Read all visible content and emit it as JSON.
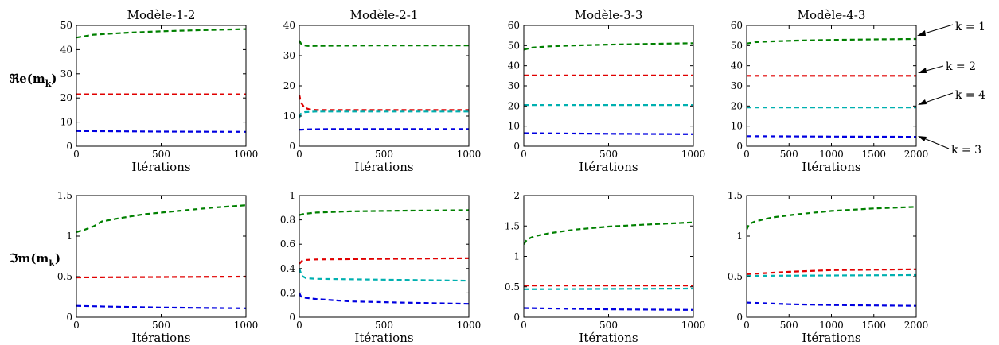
{
  "figure": {
    "ylabel_re": "ℜe(m",
    "ylabel_im": "ℑm(m",
    "ylabel_sub": "k",
    "ylabel_close": ")",
    "xlabel": "Itérations"
  },
  "legend": [
    {
      "label": "k = 1",
      "color": "#008000"
    },
    {
      "label": "k = 2",
      "color": "#e00000"
    },
    {
      "label": "k = 4",
      "color": "#00b0b0"
    },
    {
      "label": "k = 3",
      "color": "#0000e0"
    }
  ],
  "chart_data": [
    {
      "type": "line",
      "title": "Modèle-1-2",
      "xlabel": "Itérations",
      "ylabel": "ℜe(m_k)",
      "xlim": [
        0,
        1000
      ],
      "ylim": [
        0,
        50
      ],
      "xticks": [
        0,
        500,
        1000
      ],
      "yticks": [
        0,
        10,
        20,
        30,
        40,
        50
      ],
      "series": [
        {
          "name": "k = 1",
          "color": "#008000",
          "x": [
            0,
            100,
            300,
            500,
            700,
            1000
          ],
          "y": [
            45,
            46.2,
            47,
            47.6,
            48,
            48.5
          ]
        },
        {
          "name": "k = 2",
          "color": "#e00000",
          "x": [
            0,
            1000
          ],
          "y": [
            21.5,
            21.5
          ]
        },
        {
          "name": "k = 3",
          "color": "#0000e0",
          "x": [
            0,
            500,
            1000
          ],
          "y": [
            6.3,
            6.1,
            6
          ]
        }
      ]
    },
    {
      "type": "line",
      "title": "Modèle-2-1",
      "xlabel": "Itérations",
      "ylabel": "",
      "xlim": [
        0,
        1000
      ],
      "ylim": [
        0,
        40
      ],
      "xticks": [
        0,
        500,
        1000
      ],
      "yticks": [
        0,
        10,
        20,
        30,
        40
      ],
      "series": [
        {
          "name": "k = 1",
          "color": "#008000",
          "x": [
            0,
            15,
            50,
            200,
            500,
            1000
          ],
          "y": [
            35,
            33.5,
            33.2,
            33.3,
            33.4,
            33.4
          ]
        },
        {
          "name": "k = 2",
          "color": "#e00000",
          "x": [
            0,
            10,
            30,
            60,
            100,
            500,
            1000
          ],
          "y": [
            17,
            14.5,
            12.8,
            12.2,
            12,
            12,
            12
          ]
        },
        {
          "name": "k = 4",
          "color": "#00b0b0",
          "x": [
            0,
            10,
            30,
            60,
            100,
            500,
            1000
          ],
          "y": [
            9.5,
            10.8,
            11.3,
            11.4,
            11.5,
            11.5,
            11.5
          ]
        },
        {
          "name": "k = 3",
          "color": "#0000e0",
          "x": [
            0,
            15,
            50,
            200,
            500,
            1000
          ],
          "y": [
            5.5,
            5.5,
            5.6,
            5.7,
            5.7,
            5.7
          ]
        }
      ]
    },
    {
      "type": "line",
      "title": "Modèle-3-3",
      "xlabel": "Itérations",
      "ylabel": "",
      "xlim": [
        0,
        1000
      ],
      "ylim": [
        0,
        60
      ],
      "xticks": [
        0,
        500,
        1000
      ],
      "yticks": [
        0,
        10,
        20,
        30,
        40,
        50,
        60
      ],
      "series": [
        {
          "name": "k = 1",
          "color": "#008000",
          "x": [
            0,
            50,
            150,
            300,
            500,
            700,
            1000
          ],
          "y": [
            48,
            49,
            49.6,
            50.1,
            50.5,
            50.8,
            51.2
          ]
        },
        {
          "name": "k = 2",
          "color": "#e00000",
          "x": [
            0,
            1000
          ],
          "y": [
            35.2,
            35.2
          ]
        },
        {
          "name": "k = 4",
          "color": "#00b0b0",
          "x": [
            0,
            1000
          ],
          "y": [
            20.5,
            20.5
          ]
        },
        {
          "name": "k = 3",
          "color": "#0000e0",
          "x": [
            0,
            500,
            1000
          ],
          "y": [
            6.5,
            6.2,
            6
          ]
        }
      ]
    },
    {
      "type": "line",
      "title": "Modèle-4-3",
      "xlabel": "Itérations",
      "ylabel": "",
      "xlim": [
        0,
        2000
      ],
      "ylim": [
        0,
        60
      ],
      "xticks": [
        0,
        500,
        1000,
        1500,
        2000
      ],
      "yticks": [
        0,
        10,
        20,
        30,
        40,
        50,
        60
      ],
      "series": [
        {
          "name": "k = 1",
          "color": "#008000",
          "x": [
            0,
            100,
            300,
            600,
            1000,
            1500,
            2000
          ],
          "y": [
            51,
            51.7,
            52.1,
            52.5,
            52.8,
            53.1,
            53.3
          ]
        },
        {
          "name": "k = 2",
          "color": "#e00000",
          "x": [
            0,
            2000
          ],
          "y": [
            35,
            35
          ]
        },
        {
          "name": "k = 4",
          "color": "#00b0b0",
          "x": [
            0,
            2000
          ],
          "y": [
            19.3,
            19.3
          ]
        },
        {
          "name": "k = 3",
          "color": "#0000e0",
          "x": [
            0,
            1000,
            2000
          ],
          "y": [
            5,
            4.8,
            4.7
          ]
        }
      ]
    },
    {
      "type": "line",
      "title": "",
      "xlabel": "Itérations",
      "ylabel": "ℑm(m_k)",
      "xlim": [
        0,
        1000
      ],
      "ylim": [
        0,
        1.5
      ],
      "xticks": [
        0,
        500,
        1000
      ],
      "yticks": [
        0,
        0.5,
        1,
        1.5
      ],
      "series": [
        {
          "name": "k = 1",
          "color": "#008000",
          "x": [
            0,
            50,
            100,
            150,
            250,
            400,
            600,
            800,
            1000
          ],
          "y": [
            1.05,
            1.08,
            1.12,
            1.18,
            1.22,
            1.27,
            1.31,
            1.35,
            1.38
          ]
        },
        {
          "name": "k = 2",
          "color": "#e00000",
          "x": [
            0,
            1000
          ],
          "y": [
            0.49,
            0.5
          ]
        },
        {
          "name": "k = 3",
          "color": "#0000e0",
          "x": [
            0,
            200,
            500,
            1000
          ],
          "y": [
            0.14,
            0.13,
            0.12,
            0.11
          ]
        }
      ]
    },
    {
      "type": "line",
      "title": "",
      "xlabel": "Itérations",
      "ylabel": "",
      "xlim": [
        0,
        1000
      ],
      "ylim": [
        0,
        1
      ],
      "xticks": [
        0,
        500,
        1000
      ],
      "yticks": [
        0,
        0.2,
        0.4,
        0.6,
        0.8,
        1
      ],
      "series": [
        {
          "name": "k = 1",
          "color": "#008000",
          "x": [
            0,
            30,
            100,
            300,
            600,
            1000
          ],
          "y": [
            0.84,
            0.85,
            0.86,
            0.87,
            0.875,
            0.88
          ]
        },
        {
          "name": "k = 2",
          "color": "#e00000",
          "x": [
            0,
            20,
            100,
            500,
            1000
          ],
          "y": [
            0.44,
            0.47,
            0.475,
            0.48,
            0.485
          ]
        },
        {
          "name": "k = 4",
          "color": "#00b0b0",
          "x": [
            0,
            15,
            40,
            100,
            400,
            1000
          ],
          "y": [
            0.4,
            0.34,
            0.32,
            0.315,
            0.31,
            0.3
          ]
        },
        {
          "name": "k = 3",
          "color": "#0000e0",
          "x": [
            0,
            10,
            30,
            100,
            300,
            600,
            1000
          ],
          "y": [
            0.2,
            0.17,
            0.16,
            0.15,
            0.13,
            0.12,
            0.11
          ]
        }
      ]
    },
    {
      "type": "line",
      "title": "",
      "xlabel": "Itérations",
      "ylabel": "",
      "xlim": [
        0,
        1000
      ],
      "ylim": [
        0,
        2
      ],
      "xticks": [
        0,
        500,
        1000
      ],
      "yticks": [
        0,
        0.5,
        1,
        1.5,
        2
      ],
      "series": [
        {
          "name": "k = 1",
          "color": "#008000",
          "x": [
            0,
            20,
            60,
            150,
            300,
            500,
            700,
            1000
          ],
          "y": [
            1.2,
            1.28,
            1.33,
            1.38,
            1.44,
            1.49,
            1.52,
            1.56
          ]
        },
        {
          "name": "k = 2",
          "color": "#e00000",
          "x": [
            0,
            1000
          ],
          "y": [
            0.52,
            0.52
          ]
        },
        {
          "name": "k = 4",
          "color": "#00b0b0",
          "x": [
            0,
            1000
          ],
          "y": [
            0.46,
            0.47
          ]
        },
        {
          "name": "k = 3",
          "color": "#0000e0",
          "x": [
            0,
            500,
            1000
          ],
          "y": [
            0.15,
            0.13,
            0.12
          ]
        }
      ]
    },
    {
      "type": "line",
      "title": "",
      "xlabel": "Itérations",
      "ylabel": "",
      "xlim": [
        0,
        2000
      ],
      "ylim": [
        0,
        1.5
      ],
      "xticks": [
        0,
        500,
        1000,
        1500,
        2000
      ],
      "yticks": [
        0,
        0.5,
        1,
        1.5
      ],
      "series": [
        {
          "name": "k = 1",
          "color": "#008000",
          "x": [
            0,
            30,
            100,
            300,
            600,
            1000,
            1500,
            2000
          ],
          "y": [
            1.08,
            1.15,
            1.18,
            1.23,
            1.27,
            1.31,
            1.34,
            1.36
          ]
        },
        {
          "name": "k = 2",
          "color": "#e00000",
          "x": [
            0,
            500,
            1000,
            2000
          ],
          "y": [
            0.53,
            0.56,
            0.58,
            0.59
          ]
        },
        {
          "name": "k = 4",
          "color": "#00b0b0",
          "x": [
            0,
            2000
          ],
          "y": [
            0.51,
            0.52
          ]
        },
        {
          "name": "k = 3",
          "color": "#0000e0",
          "x": [
            0,
            500,
            1000,
            2000
          ],
          "y": [
            0.18,
            0.16,
            0.15,
            0.14
          ]
        }
      ]
    }
  ]
}
